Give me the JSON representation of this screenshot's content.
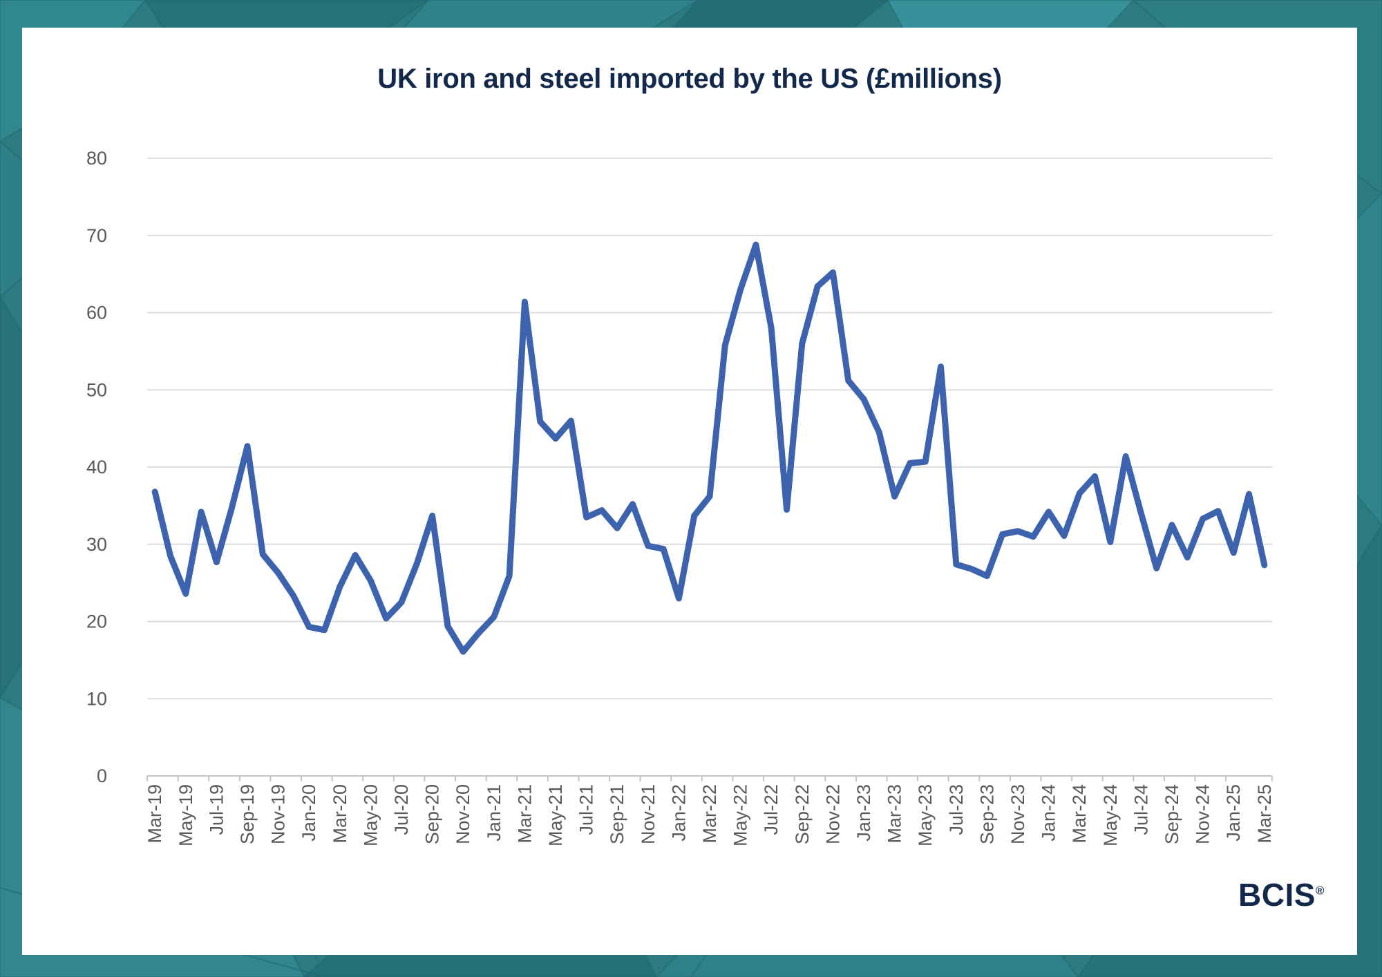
{
  "title": "UK iron and steel imported by the US (£millions)",
  "brand": {
    "name": "BCIS",
    "registered": "®"
  },
  "colors": {
    "line_color": "#3E63AE",
    "grid_color": "#D9D9D9",
    "axis_line_color": "#BFBFBF",
    "axis_text_color": "#595959",
    "title_color": "#13294B",
    "card_bg": "#FFFFFF",
    "frame_teal": "#2B7B81"
  },
  "chart_data": {
    "type": "line",
    "title": "UK iron and steel imported by the US (£millions)",
    "xlabel": "",
    "ylabel": "",
    "ylim": [
      0,
      80
    ],
    "y_ticks": [
      0,
      10,
      20,
      30,
      40,
      50,
      60,
      70,
      80
    ],
    "x_label_interval": 2,
    "grid": true,
    "legend": "none",
    "x": [
      "Mar-19",
      "Apr-19",
      "May-19",
      "Jun-19",
      "Jul-19",
      "Aug-19",
      "Sep-19",
      "Oct-19",
      "Nov-19",
      "Dec-19",
      "Jan-20",
      "Feb-20",
      "Mar-20",
      "Apr-20",
      "May-20",
      "Jun-20",
      "Jul-20",
      "Aug-20",
      "Sep-20",
      "Oct-20",
      "Nov-20",
      "Dec-20",
      "Jan-21",
      "Feb-21",
      "Mar-21",
      "Apr-21",
      "May-21",
      "Jun-21",
      "Jul-21",
      "Aug-21",
      "Sep-21",
      "Oct-21",
      "Nov-21",
      "Dec-21",
      "Jan-22",
      "Feb-22",
      "Mar-22",
      "Apr-22",
      "May-22",
      "Jun-22",
      "Jul-22",
      "Aug-22",
      "Sep-22",
      "Oct-22",
      "Nov-22",
      "Dec-22",
      "Jan-23",
      "Feb-23",
      "Mar-23",
      "Apr-23",
      "May-23",
      "Jun-23",
      "Jul-23",
      "Aug-23",
      "Sep-23",
      "Oct-23",
      "Nov-23",
      "Dec-23",
      "Jan-24",
      "Feb-24",
      "Mar-24",
      "Apr-24",
      "May-24",
      "Jun-24",
      "Jul-24",
      "Aug-24",
      "Sep-24",
      "Oct-24",
      "Nov-24",
      "Dec-24",
      "Jan-25",
      "Feb-25",
      "Mar-25"
    ],
    "values": [
      36.8,
      28.5,
      23.6,
      34.2,
      27.7,
      34.8,
      42.7,
      28.7,
      26.3,
      23.3,
      19.3,
      18.9,
      24.5,
      28.6,
      25.3,
      20.4,
      22.5,
      27.5,
      33.7,
      19.4,
      16.1,
      18.5,
      20.6,
      25.9,
      61.4,
      45.9,
      43.7,
      46.0,
      33.5,
      34.4,
      32.1,
      35.2,
      29.8,
      29.4,
      23.0,
      33.7,
      36.2,
      55.8,
      63.0,
      68.8,
      58.0,
      34.5,
      56.0,
      63.4,
      65.2,
      51.2,
      48.8,
      44.5,
      36.2,
      40.5,
      40.7,
      53.0,
      27.4,
      26.8,
      25.9,
      31.3,
      31.7,
      31.0,
      34.2,
      31.1,
      36.6,
      38.8,
      30.3,
      41.4,
      34.0,
      26.9,
      32.5,
      28.3,
      33.3,
      34.3,
      28.9,
      36.5,
      27.3
    ]
  }
}
